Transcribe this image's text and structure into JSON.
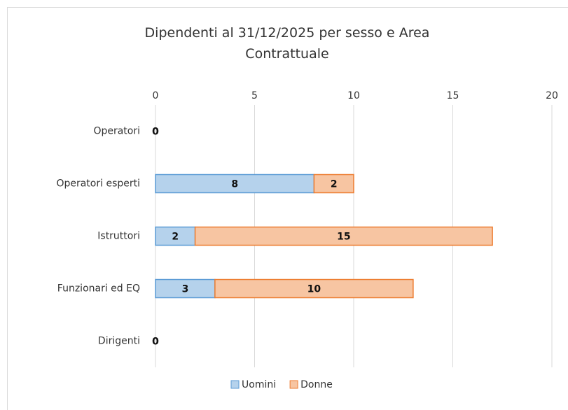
{
  "chart_data": {
    "type": "stacked-barh",
    "title": "Dipendenti al 31/12/2025 per sesso e Area Contrattuale",
    "categories": [
      "Operatori",
      "Operatori esperti",
      "Istruttori",
      "Funzionari ed EQ",
      "Dirigenti"
    ],
    "series": [
      {
        "name": "Uomini",
        "color": "#5b9bd5",
        "values": [
          0,
          8,
          2,
          3,
          0
        ]
      },
      {
        "name": "Donne",
        "color": "#ed7d31",
        "values": [
          0,
          2,
          15,
          10,
          0
        ]
      }
    ],
    "xlim": [
      0,
      20
    ],
    "xticks": [
      0,
      5,
      10,
      15,
      20
    ],
    "grid": true,
    "legend": "bottom"
  }
}
